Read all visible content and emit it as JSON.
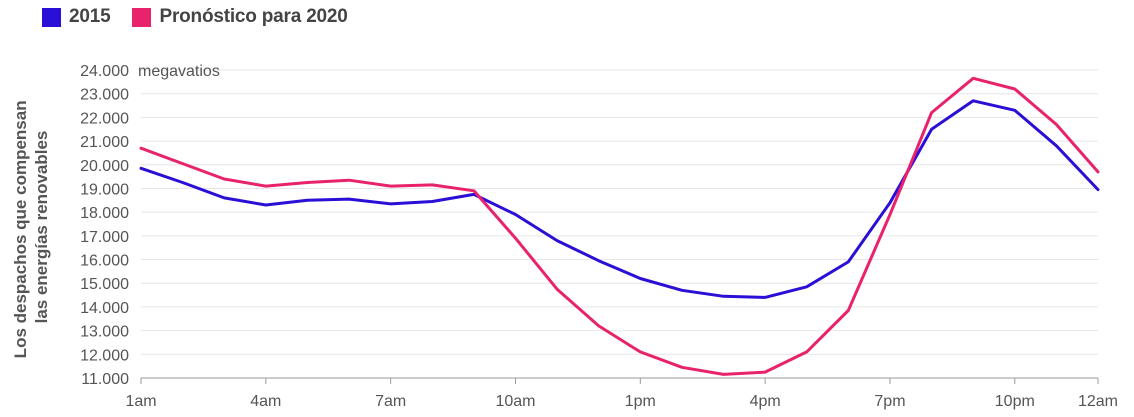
{
  "chart_data": {
    "type": "line",
    "legend_position": "top-left",
    "grid": true,
    "ylabel_lines": [
      "Los despachos que compensan",
      "las energías renovables"
    ],
    "y_unit": "megavatios",
    "ylim": [
      11000,
      24000
    ],
    "y_ticks": [
      {
        "value": 24000,
        "label": "24.000"
      },
      {
        "value": 23000,
        "label": "23.000"
      },
      {
        "value": 22000,
        "label": "22.000"
      },
      {
        "value": 21000,
        "label": "21.000"
      },
      {
        "value": 20000,
        "label": "20.000"
      },
      {
        "value": 19000,
        "label": "19.000"
      },
      {
        "value": 18000,
        "label": "18.000"
      },
      {
        "value": 17000,
        "label": "17.000"
      },
      {
        "value": 16000,
        "label": "16.000"
      },
      {
        "value": 15000,
        "label": "15.000"
      },
      {
        "value": 14000,
        "label": "14.000"
      },
      {
        "value": 13000,
        "label": "13.000"
      },
      {
        "value": 12000,
        "label": "12.000"
      },
      {
        "value": 11000,
        "label": "11.000"
      }
    ],
    "x": [
      "1am",
      "2am",
      "3am",
      "4am",
      "5am",
      "6am",
      "7am",
      "8am",
      "9am",
      "10am",
      "11am",
      "12pm",
      "1pm",
      "2pm",
      "3pm",
      "4pm",
      "5pm",
      "6pm",
      "7pm",
      "8pm",
      "9pm",
      "10pm",
      "11pm",
      "12am"
    ],
    "x_tick_labels": [
      "1am",
      "4am",
      "7am",
      "10am",
      "1pm",
      "4pm",
      "7pm",
      "10pm",
      "12am"
    ],
    "series": [
      {
        "name": "2015",
        "color": "#2a0fd6",
        "values": [
          19850,
          19250,
          18600,
          18300,
          18500,
          18550,
          18350,
          18450,
          18750,
          17900,
          16800,
          15950,
          15200,
          14700,
          14450,
          14400,
          14850,
          15900,
          18400,
          21500,
          22700,
          22300,
          20800,
          18950
        ]
      },
      {
        "name": "Pronóstico para 2020",
        "color": "#e8236b",
        "values": [
          20700,
          20050,
          19400,
          19100,
          19250,
          19350,
          19100,
          19150,
          18900,
          16900,
          14750,
          13200,
          12100,
          11450,
          11150,
          11250,
          12100,
          13850,
          17900,
          22200,
          23650,
          23200,
          21700,
          19700
        ]
      }
    ]
  }
}
